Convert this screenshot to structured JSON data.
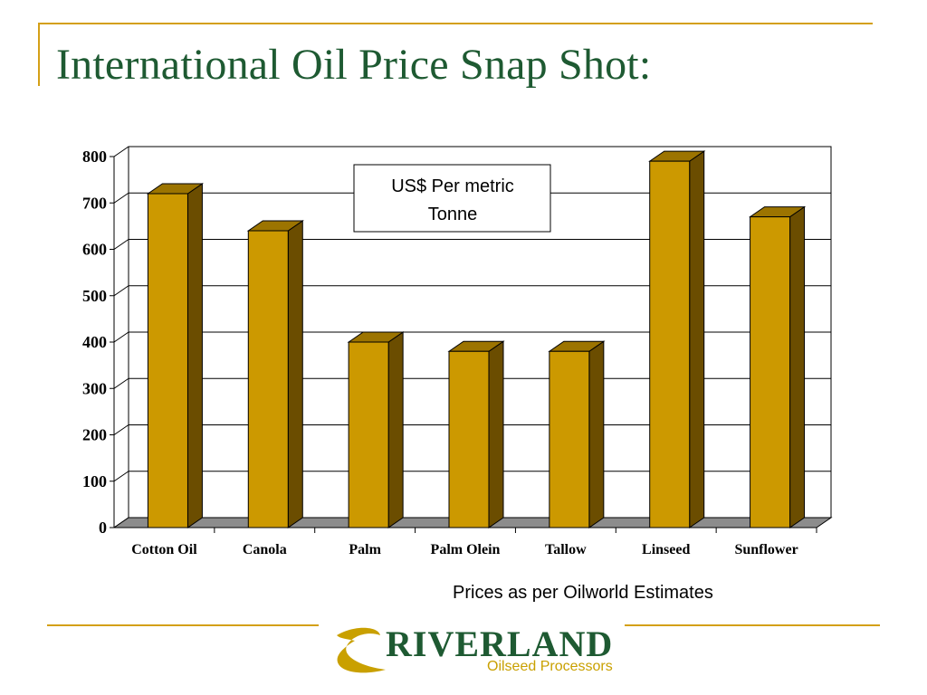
{
  "slide": {
    "title": "International Oil Price Snap Shot:",
    "source_note": "Prices as per Oilworld Estimates"
  },
  "logo": {
    "name": "RIVERLAND",
    "tagline": "Oilseed Processors"
  },
  "colors": {
    "title": "#1e5a32",
    "accent_rule": "#d4a017",
    "bar_front": "#cc9900",
    "bar_side": "#6b4d00",
    "bar_top": "#9c7400",
    "floor": "#8c8c8c"
  },
  "chart_data": {
    "type": "bar",
    "style": "3d-column",
    "categories": [
      "Cotton Oil",
      "Canola",
      "Palm",
      "Palm Olein",
      "Tallow",
      "Linseed",
      "Sunflower"
    ],
    "values": [
      720,
      640,
      400,
      380,
      380,
      790,
      670
    ],
    "ylim": [
      0,
      800
    ],
    "yticks": [
      0,
      100,
      200,
      300,
      400,
      500,
      600,
      700,
      800
    ],
    "grid": true,
    "annotation": "US$ Per metric Tonne"
  }
}
